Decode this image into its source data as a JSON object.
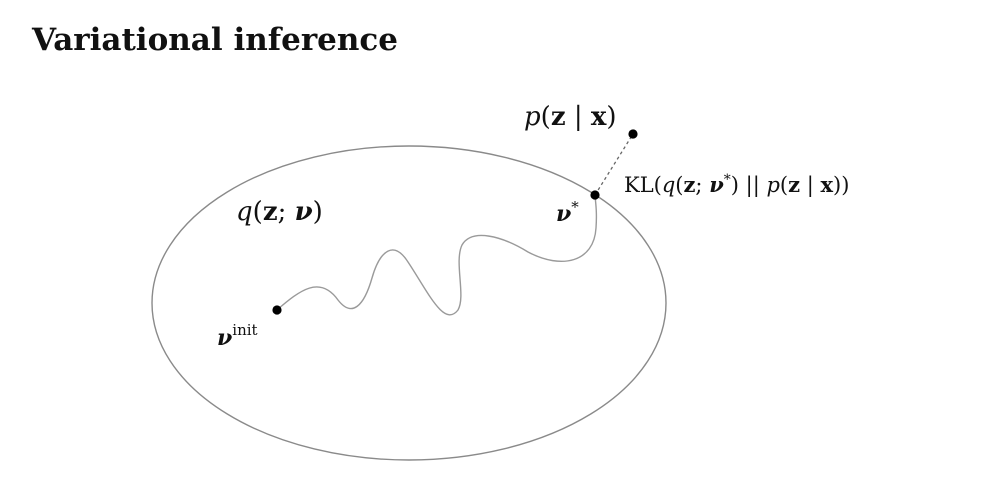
{
  "title": "Variational inference",
  "diagram": {
    "family_label": {
      "q": "q",
      "open": "(",
      "z": "z",
      "sep": "; ",
      "nu": "ν",
      "close": ")"
    },
    "init_label": {
      "nu": "ν",
      "sup": "init"
    },
    "optimum_label": {
      "nu": "ν",
      "sup": "*"
    },
    "posterior_label": {
      "p": "p",
      "open": "(",
      "z": "z",
      "bar": " | ",
      "x": "x",
      "close": ")"
    },
    "kl_label": {
      "kl": "KL(",
      "q": "q",
      "open": "(",
      "z": "z",
      "sep": "; ",
      "nu": "ν",
      "star": "*",
      "close": ") || ",
      "p": "p",
      "open2": "(",
      "z2": "z",
      "bar": " | ",
      "x": "x",
      "close2": "))"
    }
  }
}
